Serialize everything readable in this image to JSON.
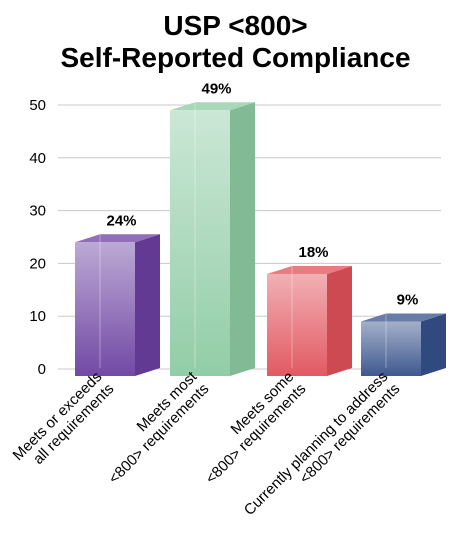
{
  "chart_data": {
    "type": "bar",
    "title": [
      "USP <800>",
      "Self-Reported Compliance"
    ],
    "categories": [
      [
        "Meets or exceeds",
        "all requirements"
      ],
      [
        "Meets most",
        "<800> requirements"
      ],
      [
        "Meets some",
        "<800> requirements"
      ],
      [
        "Currently planning to address",
        "<800> requirements"
      ]
    ],
    "values": [
      24,
      49,
      18,
      9
    ],
    "data_labels": [
      "24%",
      "49%",
      "18%",
      "9%"
    ],
    "y_ticks": [
      "0",
      "10",
      "20",
      "30",
      "40",
      "50"
    ],
    "ylim": [
      0,
      50
    ],
    "grid": true,
    "colors": [
      "#6b3fa0",
      "#8ccaa2",
      "#e0505a",
      "#34508a"
    ],
    "bar_style": "3d"
  }
}
